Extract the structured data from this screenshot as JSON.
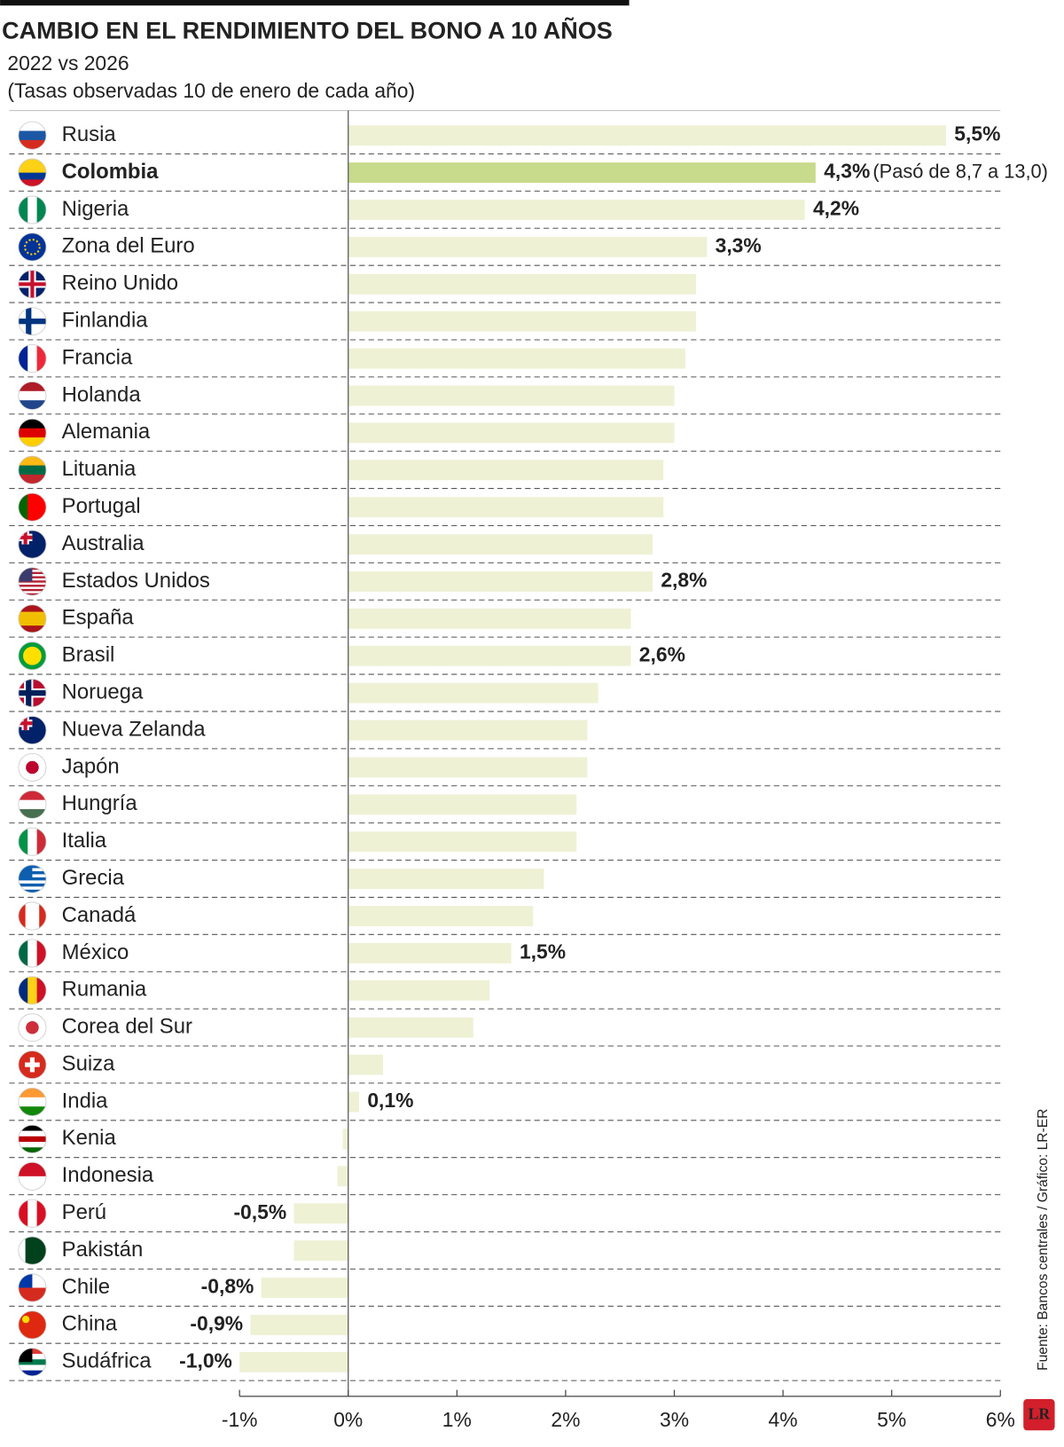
{
  "chart_data": {
    "type": "hbar",
    "title": "CAMBIO EN EL RENDIMIENTO DEL BONO A 10 AÑOS",
    "subtitle": "2022 vs 2026",
    "note": "(Tasas observadas 10 de enero de cada año)",
    "categories": [
      "Rusia",
      "Colombia",
      "Nigeria",
      "Zona del Euro",
      "Reino Unido",
      "Finlandia",
      "Francia",
      "Holanda",
      "Alemania",
      "Lituania",
      "Portugal",
      "Australia",
      "Estados Unidos",
      "España",
      "Brasil",
      "Noruega",
      "Nueva Zelanda",
      "Japón",
      "Hungría",
      "Italia",
      "Grecia",
      "Canadá",
      "México",
      "Rumania",
      "Corea del Sur",
      "Suiza",
      "India",
      "Kenia",
      "Indonesia",
      "Perú",
      "Pakistán",
      "Chile",
      "China",
      "Sudáfrica"
    ],
    "values": [
      5.5,
      4.3,
      4.2,
      3.3,
      3.2,
      3.2,
      3.1,
      3.0,
      3.0,
      2.9,
      2.9,
      2.8,
      2.8,
      2.6,
      2.6,
      2.3,
      2.2,
      2.2,
      2.1,
      2.1,
      1.8,
      1.7,
      1.5,
      1.3,
      1.15,
      0.32,
      0.1,
      -0.05,
      -0.1,
      -0.5,
      -0.5,
      -0.8,
      -0.9,
      -1.0
    ],
    "value_labels": [
      "5,5%",
      "4,3%",
      "4,2%",
      "3,3%",
      null,
      null,
      null,
      null,
      null,
      null,
      null,
      null,
      "2,8%",
      null,
      "2,6%",
      null,
      null,
      null,
      null,
      null,
      null,
      null,
      "1,5%",
      null,
      null,
      null,
      "0,1%",
      null,
      null,
      "-0,5%",
      null,
      "-0,8%",
      "-0,9%",
      "-1,0%"
    ],
    "color": "#eef1d4",
    "highlight": {
      "category": "Colombia",
      "color": "#c8da8c",
      "annotation": "(Pasó de 8,7 a 13,0)"
    },
    "xlim": [
      -1,
      6
    ],
    "xticks": [
      {
        "value": -1,
        "label": "-1%"
      },
      {
        "value": 0,
        "label": "0%"
      },
      {
        "value": 1,
        "label": "1%"
      },
      {
        "value": 2,
        "label": "2%"
      },
      {
        "value": 3,
        "label": "3%"
      },
      {
        "value": 4,
        "label": "4%"
      },
      {
        "value": 5,
        "label": "5%"
      },
      {
        "value": 6,
        "label": "6%"
      }
    ],
    "source": "Fuente: Bancos centrales / Gráfico: LR-ER",
    "logo": "LR"
  }
}
